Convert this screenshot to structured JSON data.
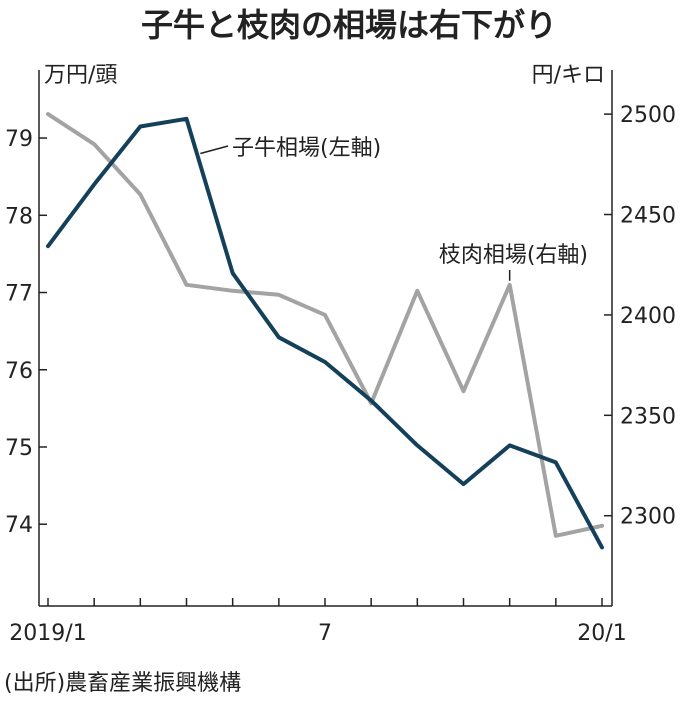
{
  "chart_data": {
    "type": "line",
    "title": "子牛と枝肉の相場は右下がり",
    "left_unit": "万円/頭",
    "right_unit": "円/キロ",
    "x_tick_labels": [
      {
        "index": 0,
        "label": "2019/1"
      },
      {
        "index": 6,
        "label": "7"
      },
      {
        "index": 12,
        "label": "20/1"
      }
    ],
    "left_axis": {
      "min": 73.2,
      "max": 79.7,
      "ticks": [
        74,
        75,
        76,
        77,
        78,
        79
      ]
    },
    "right_axis": {
      "min": 2265,
      "max": 2515,
      "ticks": [
        2300,
        2350,
        2400,
        2450,
        2500
      ]
    },
    "series": [
      {
        "name": "子牛相場(左軸)",
        "axis": "left",
        "color": "#14405a",
        "values": [
          77.6,
          78.4,
          79.15,
          79.25,
          77.25,
          76.42,
          76.1,
          75.6,
          75.02,
          74.52,
          75.02,
          74.8,
          73.7
        ]
      },
      {
        "name": "枝肉相場(右軸)",
        "axis": "right",
        "color": "#a3a3a3",
        "values": [
          2500,
          2485,
          2460,
          2415,
          2412,
          2410,
          2400,
          2356,
          2412,
          2362,
          2415,
          2290,
          2295
        ]
      }
    ],
    "source": "(出所)農畜産業振興機構"
  }
}
